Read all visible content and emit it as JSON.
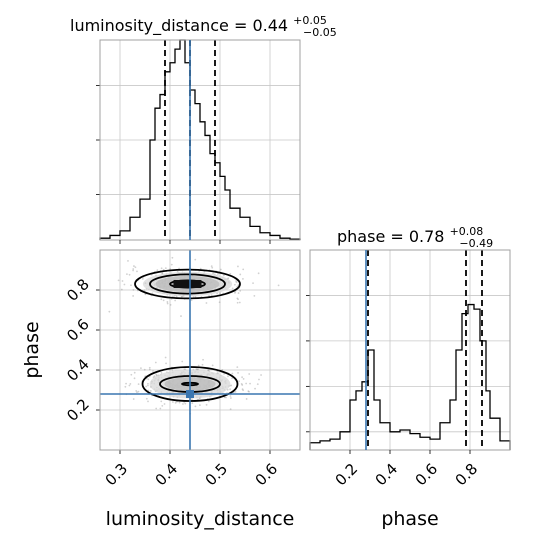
{
  "chart_data": {
    "type": "corner",
    "parameters": [
      "luminosity_distance",
      "phase"
    ],
    "truth": {
      "luminosity_distance": 0.44,
      "phase": 0.28
    },
    "grid": true,
    "x_axis_labels": {
      "left": "luminosity_distance",
      "right": "phase"
    },
    "y_axis_label": "phase",
    "panels": {
      "luminosity_distance_hist": {
        "title": {
          "prefix": "luminosity_distance = 0.44",
          "plus": "+0.05",
          "minus": "−0.05"
        },
        "xlim": [
          0.26,
          0.66
        ],
        "ylim": [
          0,
          220
        ],
        "bin_edges": [
          0.26,
          0.28,
          0.3,
          0.32,
          0.34,
          0.36,
          0.37,
          0.38,
          0.39,
          0.4,
          0.41,
          0.42,
          0.43,
          0.44,
          0.45,
          0.46,
          0.47,
          0.48,
          0.49,
          0.5,
          0.51,
          0.52,
          0.54,
          0.56,
          0.58,
          0.6,
          0.62,
          0.64,
          0.66
        ],
        "counts": [
          2,
          5,
          10,
          25,
          45,
          110,
          145,
          160,
          185,
          195,
          210,
          220,
          195,
          165,
          150,
          130,
          115,
          95,
          85,
          70,
          55,
          35,
          25,
          15,
          8,
          5,
          2,
          1
        ],
        "quantiles": [
          0.39,
          0.44,
          0.49
        ],
        "ytick_values": [
          50,
          110,
          170
        ]
      },
      "phase_hist": {
        "title": {
          "prefix": "phase = 0.78",
          "plus": "+0.08",
          "minus": "−0.49"
        },
        "xlim": [
          0.0,
          1.0
        ],
        "ylim": [
          0,
          220
        ],
        "bin_edges": [
          0.0,
          0.05,
          0.1,
          0.15,
          0.2,
          0.23,
          0.26,
          0.29,
          0.32,
          0.35,
          0.4,
          0.45,
          0.5,
          0.55,
          0.6,
          0.65,
          0.7,
          0.73,
          0.76,
          0.79,
          0.82,
          0.85,
          0.88,
          0.9,
          0.95,
          1.0
        ],
        "counts": [
          8,
          10,
          12,
          20,
          55,
          65,
          75,
          110,
          55,
          30,
          20,
          22,
          18,
          14,
          12,
          30,
          55,
          110,
          150,
          160,
          155,
          120,
          65,
          35,
          10
        ],
        "quantiles": [
          0.29,
          0.78,
          0.86
        ],
        "ytick_values": [
          20,
          70,
          120,
          170
        ]
      },
      "joint": {
        "xlim": [
          0.26,
          0.66
        ],
        "ylim": [
          0.0,
          1.0
        ],
        "modes": [
          {
            "center": [
              0.435,
              0.83
            ],
            "levels": [
              [
                0.035,
                0.018
              ],
              [
                0.075,
                0.048
              ],
              [
                0.105,
                0.072
              ]
            ]
          },
          {
            "center": [
              0.44,
              0.33
            ],
            "levels": [
              [
                0.016,
                0.006
              ],
              [
                0.06,
                0.04
              ],
              [
                0.095,
                0.085
              ]
            ]
          }
        ]
      }
    },
    "x_ticks_left": [
      "0.3",
      "0.4",
      "0.5",
      "0.6"
    ],
    "x_ticks_right": [
      "0.2",
      "0.4",
      "0.6",
      "0.8"
    ],
    "y_ticks_joint": [
      "0.2",
      "0.4",
      "0.6",
      "0.8"
    ]
  }
}
